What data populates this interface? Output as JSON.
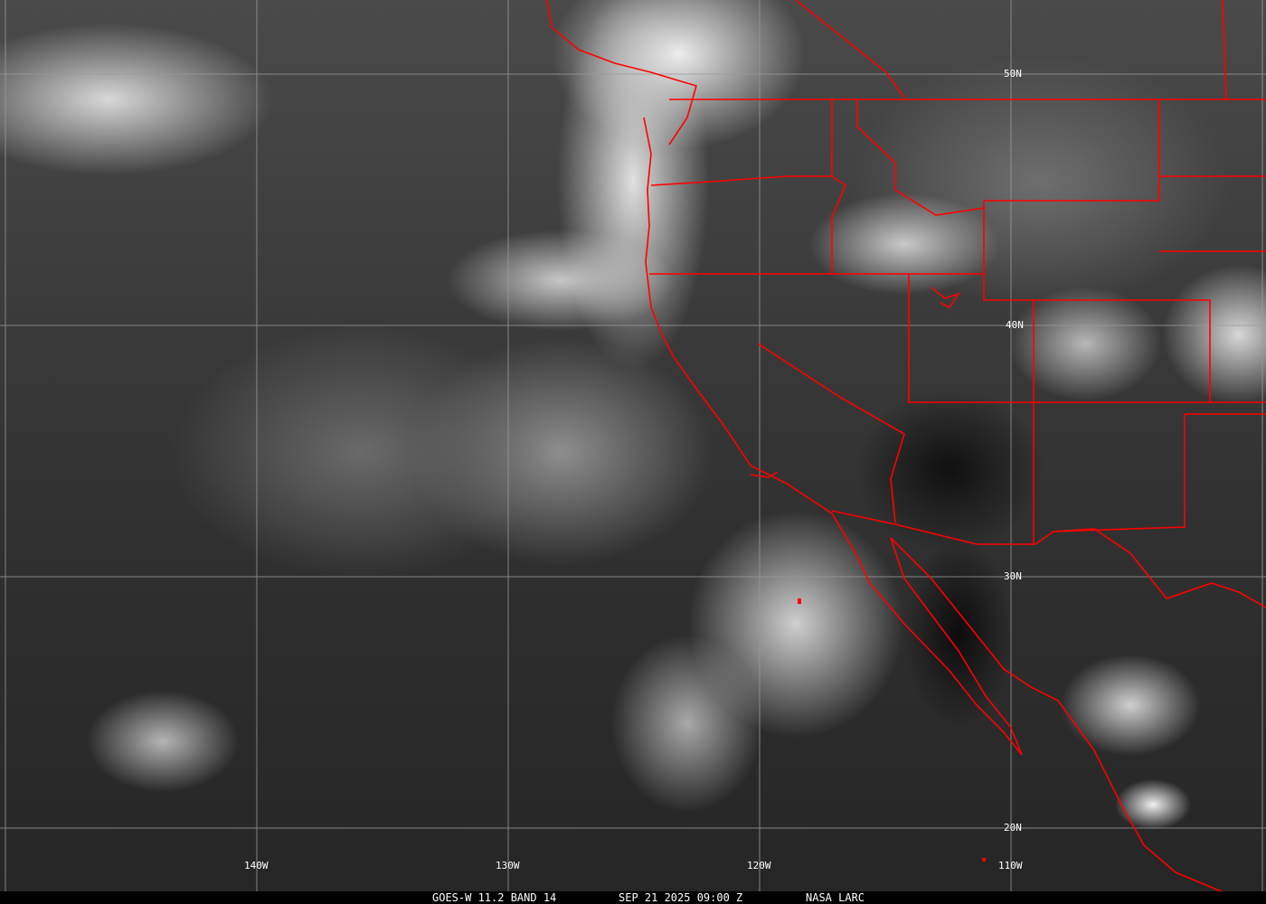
{
  "caption": {
    "satellite": "GOES-W 11.2 BAND 14",
    "datetime": "SEP 21 2025 09:00 Z",
    "source": "NASA LARC"
  },
  "latitude_labels": [
    "50N",
    "40N",
    "30N",
    "20N"
  ],
  "longitude_labels": [
    "140W",
    "130W",
    "120W",
    "110W"
  ],
  "colors": {
    "boundaries": "#ff0000",
    "grid": "#a0a0a0",
    "text": "#ffffff"
  }
}
